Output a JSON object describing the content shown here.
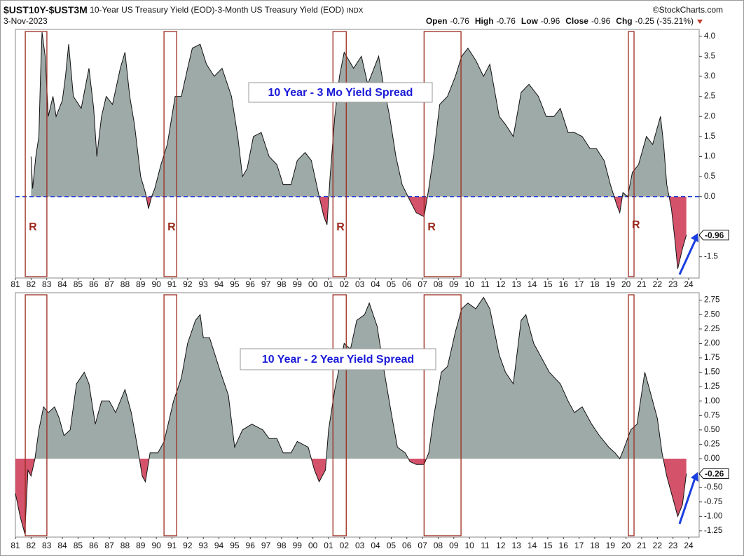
{
  "header": {
    "symbol": "$UST10Y-$UST3M",
    "description": "10-Year US Treasury Yield (EOD)-3-Month US Treasury Yield (EOD)",
    "exchange": "INDX",
    "brand": "©StockCharts.com",
    "date": "3-Nov-2023",
    "quote": [
      {
        "label": "Open",
        "value": "-0.76"
      },
      {
        "label": "High",
        "value": "-0.76"
      },
      {
        "label": "Low",
        "value": "-0.96"
      },
      {
        "label": "Close",
        "value": "-0.96"
      },
      {
        "label": "Chg",
        "value": "-0.25 (-35.21%)"
      }
    ]
  },
  "recessions": {
    "color": "#9c2a1c",
    "periods": [
      {
        "start": 1981.63,
        "end": 1983.01,
        "label": "R"
      },
      {
        "start": 1990.49,
        "end": 1991.3,
        "label": "R"
      },
      {
        "start": 2001.28,
        "end": 2002.13,
        "label": "R"
      },
      {
        "start": 2007.1,
        "end": 2009.46,
        "label": "R"
      },
      {
        "start": 2020.15,
        "end": 2020.51,
        "label": "R"
      }
    ]
  },
  "chart_data": [
    {
      "type": "area",
      "annotation": "10 Year - 3 Mo Yield Spread",
      "last_value": -0.96,
      "color": "#9eaaa8",
      "negative_color": "#d4536b",
      "line_color": "#111111",
      "zero_line": "dashed",
      "zero_line_color": "#1f3fd6",
      "xlim": [
        1981,
        2024.67
      ],
      "ylim": [
        -2.03,
        4.17
      ],
      "yticks": [
        {
          "value": 4,
          "label": "4.0"
        },
        3.5,
        {
          "value": 3,
          "label": "3.0"
        },
        2.5,
        {
          "value": 2,
          "label": "2.0"
        },
        1.5,
        {
          "value": 1,
          "label": "1.0"
        },
        0.5,
        {
          "value": 0,
          "label": "0.0"
        },
        -1.5
      ],
      "xticks": [
        {
          "value": 1981,
          "label": "81"
        },
        {
          "value": 1982,
          "label": "82"
        },
        {
          "value": 1983,
          "label": "83"
        },
        {
          "value": 1984,
          "label": "84"
        },
        {
          "value": 1985,
          "label": "85"
        },
        {
          "value": 1986,
          "label": "86"
        },
        {
          "value": 1987,
          "label": "87"
        },
        {
          "value": 1988,
          "label": "88"
        },
        {
          "value": 1989,
          "label": "89"
        },
        {
          "value": 1990,
          "label": "90"
        },
        {
          "value": 1991,
          "label": "91"
        },
        {
          "value": 1992,
          "label": "92"
        },
        {
          "value": 1993,
          "label": "93"
        },
        {
          "value": 1994,
          "label": "94"
        },
        {
          "value": 1995,
          "label": "95"
        },
        {
          "value": 1996,
          "label": "96"
        },
        {
          "value": 1997,
          "label": "97"
        },
        {
          "value": 1998,
          "label": "98"
        },
        {
          "value": 1999,
          "label": "99"
        },
        {
          "value": 2000,
          "label": "00"
        },
        {
          "value": 2001,
          "label": "01"
        },
        {
          "value": 2002,
          "label": "02"
        },
        {
          "value": 2003,
          "label": "03"
        },
        {
          "value": 2004,
          "label": "04"
        },
        {
          "value": 2005,
          "label": "05"
        },
        {
          "value": 2006,
          "label": "06"
        },
        {
          "value": 2007,
          "label": "07"
        },
        {
          "value": 2008,
          "label": "08"
        },
        {
          "value": 2009,
          "label": "09"
        },
        {
          "value": 2010,
          "label": "10"
        },
        {
          "value": 2011,
          "label": "11"
        },
        {
          "value": 2012,
          "label": "12"
        },
        {
          "value": 2013,
          "label": "13"
        },
        {
          "value": 2014,
          "label": "14"
        },
        {
          "value": 2015,
          "label": "15"
        },
        {
          "value": 2016,
          "label": "16"
        },
        {
          "value": 2017,
          "label": "17"
        },
        {
          "value": 2018,
          "label": "18"
        },
        {
          "value": 2019,
          "label": "19"
        },
        {
          "value": 2020,
          "label": "20"
        },
        {
          "value": 2021,
          "label": "21"
        },
        {
          "value": 2022,
          "label": "22"
        },
        {
          "value": 2023,
          "label": "23"
        },
        {
          "value": 2024,
          "label": "24"
        }
      ],
      "x": [
        1982.0,
        1982.1,
        1982.3,
        1982.5,
        1982.6,
        1982.7,
        1982.9,
        1983.1,
        1983.4,
        1983.6,
        1984.0,
        1984.2,
        1984.4,
        1984.7,
        1985.2,
        1985.7,
        1986.0,
        1986.2,
        1986.5,
        1986.8,
        1987.2,
        1987.7,
        1988.0,
        1988.3,
        1988.6,
        1989.0,
        1989.3,
        1989.5,
        1989.7,
        1989.9,
        1990.3,
        1990.7,
        1991.2,
        1991.6,
        1992.0,
        1992.3,
        1992.8,
        1993.2,
        1993.7,
        1994.2,
        1994.8,
        1995.2,
        1995.5,
        1995.8,
        1996.2,
        1996.7,
        1997.2,
        1997.7,
        1998.1,
        1998.6,
        1999.0,
        1999.5,
        1999.9,
        2000.4,
        2000.7,
        2000.9,
        2001.1,
        2001.4,
        2001.7,
        2002.0,
        2002.6,
        2003.1,
        2003.5,
        2004.2,
        2004.5,
        2004.9,
        2005.3,
        2005.7,
        2006.2,
        2006.6,
        2007.1,
        2007.4,
        2007.7,
        2008.1,
        2008.6,
        2009.1,
        2009.5,
        2009.9,
        2010.4,
        2010.9,
        2011.3,
        2011.9,
        2012.3,
        2012.8,
        2013.3,
        2013.8,
        2014.4,
        2014.9,
        2015.4,
        2015.8,
        2016.3,
        2016.7,
        2017.2,
        2017.7,
        2018.1,
        2018.6,
        2019.0,
        2019.4,
        2019.6,
        2019.8,
        2020.1,
        2020.4,
        2020.8,
        2021.3,
        2021.7,
        2022.2,
        2022.4,
        2022.6,
        2022.9,
        2023.1,
        2023.3,
        2023.6,
        2023.85
      ],
      "values": [
        1.0,
        0.2,
        1.0,
        1.5,
        3.0,
        4.1,
        3.5,
        2.0,
        2.5,
        2.0,
        2.4,
        3.0,
        3.8,
        2.5,
        2.2,
        3.2,
        2.2,
        1.0,
        2.0,
        2.5,
        2.3,
        3.2,
        3.6,
        2.5,
        1.8,
        0.5,
        0.1,
        -0.3,
        0.0,
        0.2,
        0.8,
        1.3,
        2.5,
        2.5,
        3.2,
        3.7,
        3.8,
        3.3,
        3.0,
        3.2,
        2.5,
        1.5,
        0.5,
        0.7,
        1.5,
        1.6,
        1.0,
        0.8,
        0.3,
        0.3,
        0.9,
        1.1,
        0.9,
        0.0,
        -0.5,
        -0.7,
        0.5,
        2.0,
        3.0,
        3.6,
        3.2,
        3.5,
        2.8,
        3.5,
        2.8,
        2.0,
        1.0,
        0.3,
        -0.1,
        -0.4,
        -0.5,
        0.2,
        1.0,
        2.3,
        2.5,
        3.0,
        3.5,
        3.7,
        3.4,
        3.0,
        3.3,
        2.0,
        1.8,
        1.5,
        2.6,
        2.8,
        2.5,
        2.0,
        2.0,
        2.2,
        1.6,
        1.6,
        1.5,
        1.2,
        1.2,
        0.9,
        0.3,
        -0.2,
        -0.4,
        0.1,
        0.0,
        0.6,
        0.8,
        1.5,
        1.3,
        2.0,
        1.3,
        0.3,
        -0.3,
        -1.0,
        -1.8,
        -1.3,
        -0.96
      ]
    },
    {
      "type": "area",
      "annotation": "10 Year - 2 Year Yield Spread",
      "last_value": -0.26,
      "color": "#9eaaa8",
      "negative_color": "#d4536b",
      "line_color": "#111111",
      "xlim": [
        1981,
        2024.67
      ],
      "ylim": [
        -1.36,
        2.88
      ],
      "yticks": [
        2.75,
        {
          "value": 2.5,
          "label": "2.50"
        },
        2.25,
        {
          "value": 2,
          "label": "2.00"
        },
        1.75,
        {
          "value": 1.5,
          "label": "1.50"
        },
        1.25,
        {
          "value": 1,
          "label": "1.00"
        },
        0.75,
        {
          "value": 0.5,
          "label": "0.50"
        },
        0.25,
        {
          "value": 0,
          "label": "0.00"
        },
        {
          "value": -0.5,
          "label": "-0.50"
        },
        -0.75,
        {
          "value": -1,
          "label": "-1.00"
        },
        -1.25
      ],
      "xticks": [
        {
          "value": 1981,
          "label": "81"
        },
        {
          "value": 1982,
          "label": "82"
        },
        {
          "value": 1983,
          "label": "83"
        },
        {
          "value": 1984,
          "label": "84"
        },
        {
          "value": 1985,
          "label": "85"
        },
        {
          "value": 1986,
          "label": "86"
        },
        {
          "value": 1987,
          "label": "87"
        },
        {
          "value": 1988,
          "label": "88"
        },
        {
          "value": 1989,
          "label": "89"
        },
        {
          "value": 1990,
          "label": "90"
        },
        {
          "value": 1991,
          "label": "91"
        },
        {
          "value": 1992,
          "label": "92"
        },
        {
          "value": 1993,
          "label": "93"
        },
        {
          "value": 1994,
          "label": "94"
        },
        {
          "value": 1995,
          "label": "95"
        },
        {
          "value": 1996,
          "label": "96"
        },
        {
          "value": 1997,
          "label": "97"
        },
        {
          "value": 1998,
          "label": "98"
        },
        {
          "value": 1999,
          "label": "99"
        },
        {
          "value": 2000,
          "label": "00"
        },
        {
          "value": 2001,
          "label": "01"
        },
        {
          "value": 2002,
          "label": "02"
        },
        {
          "value": 2003,
          "label": "03"
        },
        {
          "value": 2004,
          "label": "04"
        },
        {
          "value": 2005,
          "label": "05"
        },
        {
          "value": 2006,
          "label": "06"
        },
        {
          "value": 2007,
          "label": "07"
        },
        {
          "value": 2008,
          "label": "08"
        },
        {
          "value": 2009,
          "label": "09"
        },
        {
          "value": 2010,
          "label": "10"
        },
        {
          "value": 2011,
          "label": "11"
        },
        {
          "value": 2012,
          "label": "12"
        },
        {
          "value": 2013,
          "label": "13"
        },
        {
          "value": 2014,
          "label": "14"
        },
        {
          "value": 2015,
          "label": "15"
        },
        {
          "value": 2016,
          "label": "16"
        },
        {
          "value": 2017,
          "label": "17"
        },
        {
          "value": 2018,
          "label": "18"
        },
        {
          "value": 2019,
          "label": "19"
        },
        {
          "value": 2020,
          "label": "20"
        },
        {
          "value": 2021,
          "label": "21"
        },
        {
          "value": 2022,
          "label": "22"
        },
        {
          "value": 2023,
          "label": "23"
        },
        {
          "value": 2024,
          "label": "24"
        }
      ],
      "x": [
        1981.0,
        1981.3,
        1981.6,
        1981.8,
        1982.0,
        1982.25,
        1982.5,
        1982.8,
        1983.1,
        1983.5,
        1983.8,
        1984.1,
        1984.5,
        1984.9,
        1985.4,
        1985.7,
        1986.1,
        1986.5,
        1987.0,
        1987.4,
        1988.0,
        1988.4,
        1988.8,
        1989.1,
        1989.3,
        1989.6,
        1990.1,
        1990.5,
        1991.1,
        1991.6,
        1992.0,
        1992.5,
        1992.8,
        1993.0,
        1993.4,
        1994.1,
        1994.6,
        1995.0,
        1995.5,
        1996.1,
        1996.8,
        1997.2,
        1997.7,
        1998.1,
        1998.6,
        1999.0,
        1999.7,
        2000.1,
        2000.4,
        2000.8,
        2001.0,
        2001.4,
        2001.7,
        2002.0,
        2002.4,
        2002.8,
        2003.3,
        2003.6,
        2004.1,
        2004.5,
        2005.0,
        2005.4,
        2005.9,
        2006.2,
        2006.6,
        2007.1,
        2007.4,
        2007.7,
        2008.2,
        2008.6,
        2009.1,
        2009.5,
        2009.9,
        2010.4,
        2010.9,
        2011.3,
        2011.9,
        2012.3,
        2012.8,
        2013.3,
        2013.6,
        2014.1,
        2014.7,
        2015.1,
        2015.8,
        2016.3,
        2016.7,
        2017.2,
        2017.8,
        2018.3,
        2018.9,
        2019.3,
        2019.6,
        2019.9,
        2020.3,
        2020.7,
        2021.2,
        2021.5,
        2022.0,
        2022.3,
        2022.6,
        2023.0,
        2023.3,
        2023.6,
        2023.85
      ],
      "values": [
        -0.6,
        -1.0,
        -1.3,
        -0.2,
        -0.3,
        0.0,
        0.5,
        0.9,
        0.8,
        0.9,
        0.7,
        0.4,
        0.5,
        1.3,
        1.5,
        1.3,
        0.6,
        1.0,
        1.0,
        0.8,
        1.2,
        0.8,
        0.2,
        -0.3,
        -0.4,
        0.1,
        0.1,
        0.3,
        1.0,
        1.4,
        2.0,
        2.4,
        2.5,
        2.1,
        2.1,
        1.5,
        1.1,
        0.2,
        0.5,
        0.6,
        0.5,
        0.35,
        0.35,
        0.1,
        0.1,
        0.3,
        0.2,
        -0.2,
        -0.4,
        -0.2,
        0.5,
        1.2,
        1.6,
        2.0,
        1.9,
        2.4,
        2.5,
        2.7,
        2.3,
        1.6,
        0.8,
        0.2,
        0.1,
        -0.05,
        -0.1,
        -0.1,
        0.1,
        0.7,
        1.5,
        1.6,
        2.2,
        2.6,
        2.7,
        2.6,
        2.8,
        2.6,
        1.8,
        1.5,
        1.3,
        2.4,
        2.5,
        2.0,
        1.7,
        1.5,
        1.3,
        1.0,
        0.8,
        0.9,
        0.6,
        0.4,
        0.2,
        0.1,
        0.0,
        0.2,
        0.5,
        0.6,
        1.5,
        1.2,
        0.7,
        0.1,
        -0.3,
        -0.7,
        -1.0,
        -0.8,
        -0.26
      ]
    }
  ]
}
